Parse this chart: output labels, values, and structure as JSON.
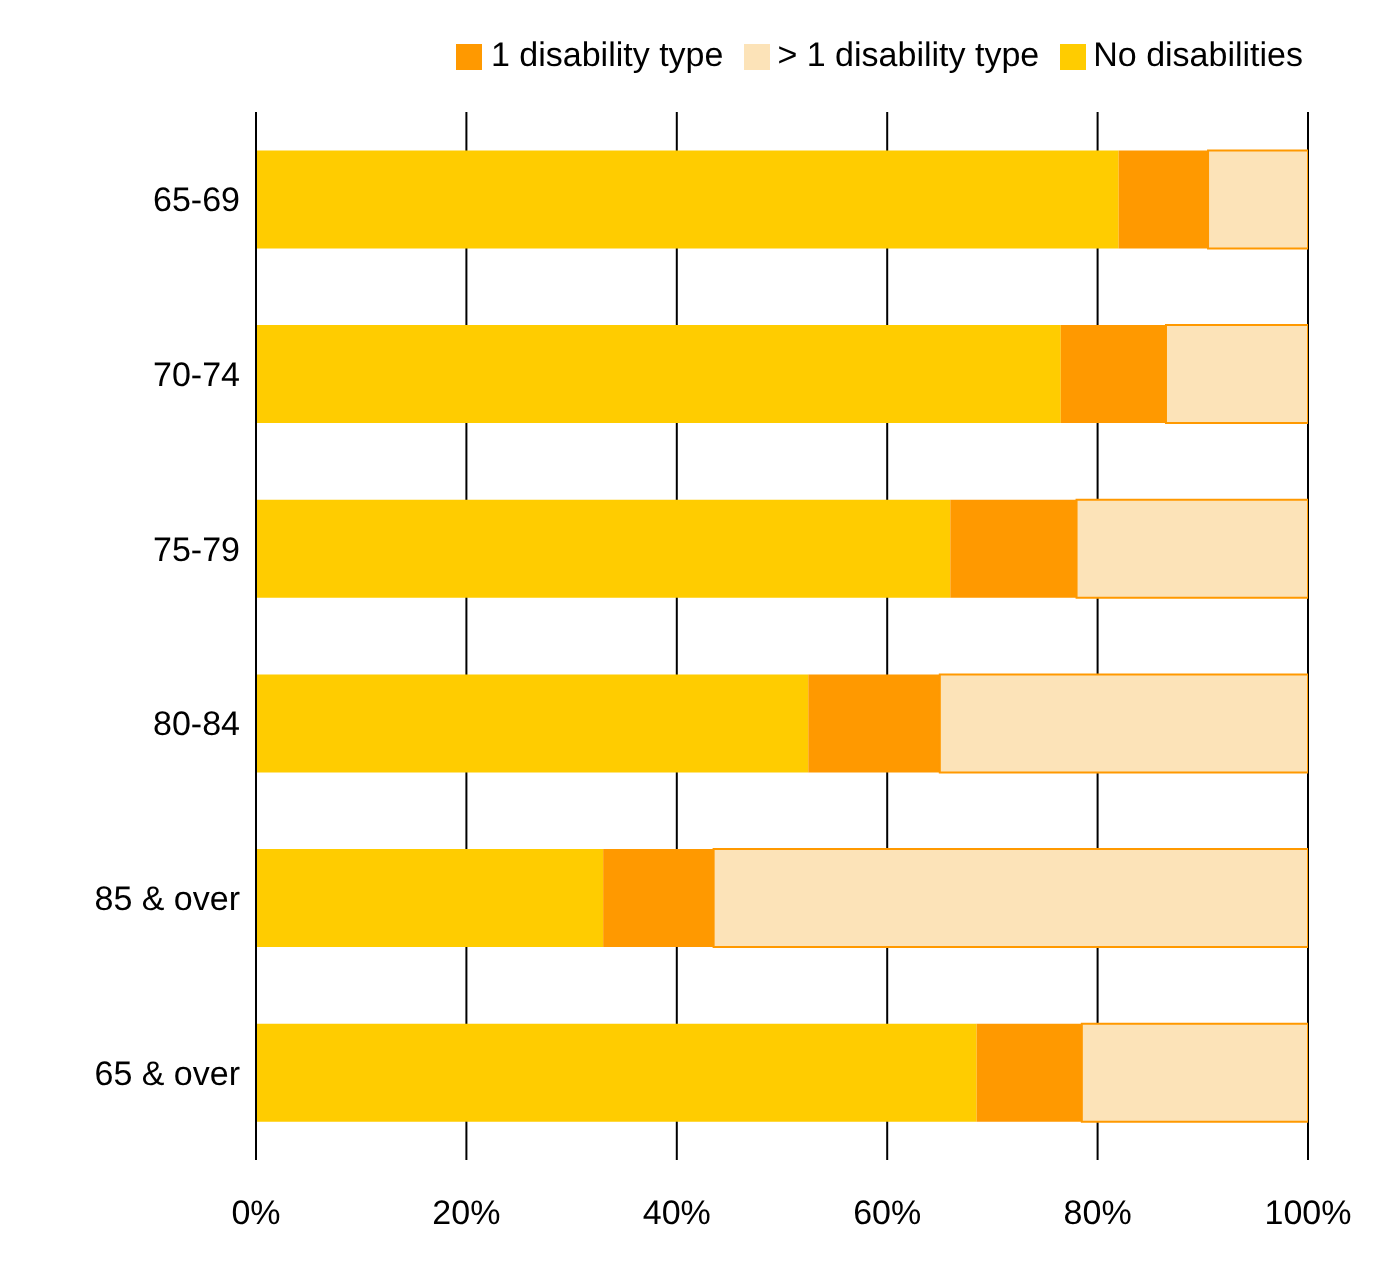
{
  "chart_data": {
    "type": "bar",
    "orientation": "horizontal",
    "stacked": true,
    "categories": [
      "65-69",
      "70-74",
      "75-79",
      "80-84",
      "85 & over",
      "65 & over"
    ],
    "series": [
      {
        "name": "No disabilities",
        "color": "#ffcc00",
        "values": [
          82,
          76.5,
          66,
          52.5,
          33,
          68.5
        ]
      },
      {
        "name": "1 disability type",
        "color": "#ff9900",
        "values": [
          8.5,
          10,
          12,
          12.5,
          10.5,
          10
        ]
      },
      {
        "name": "> 1 disability type",
        "color": "#fce3b8",
        "values": [
          9.5,
          13.5,
          22,
          35,
          56.5,
          21.5
        ]
      }
    ],
    "xlim": [
      0,
      100
    ],
    "xticks": [
      {
        "value": 0,
        "label": "0%"
      },
      {
        "value": 20,
        "label": "20%"
      },
      {
        "value": 40,
        "label": "40%"
      },
      {
        "value": 60,
        "label": "60%"
      },
      {
        "value": 80,
        "label": "80%"
      },
      {
        "value": 100,
        "label": "100%"
      }
    ],
    "grid": "x",
    "legend": "top"
  }
}
